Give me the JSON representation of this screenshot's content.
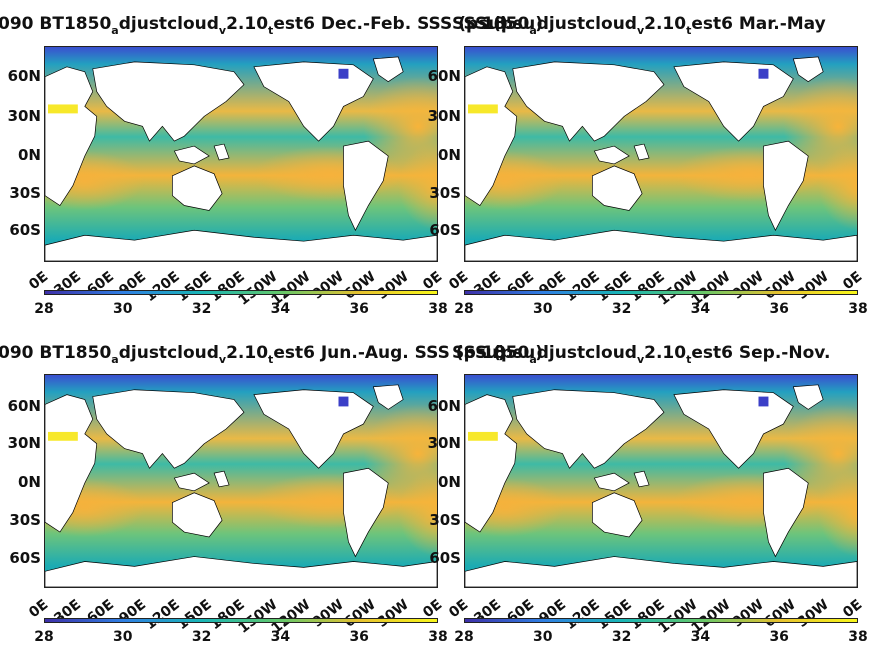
{
  "panels": [
    {
      "title_parts": [
        "090 BT1850",
        "a",
        "djustcloud",
        "v",
        "2.10",
        "t",
        "est6 Dec.-Feb. SSS (psu)"
      ]
    },
    {
      "title_parts": [
        "",
        "",
        "",
        "",
        "",
        "",
        "SSS (psu)"
      ],
      "title_overlay_parts": [
        "1850",
        "a",
        "djustcloud",
        "v",
        "2.10",
        "t",
        "est6 Mar.-May"
      ]
    },
    {
      "title_parts": [
        "090 BT1850",
        "a",
        "djustcloud",
        "v",
        "2.10",
        "t",
        "est6 Jun.-Aug. SSS (psu)"
      ]
    },
    {
      "title_parts": [
        "",
        "",
        "",
        "",
        "",
        "",
        "SSS (psu)"
      ],
      "title_overlay_parts": [
        "1850",
        "a",
        "djustcloud",
        "v",
        "2.10",
        "t",
        "est6 Sep.-Nov."
      ]
    }
  ],
  "latitude_ticks": [
    "60N",
    "30N",
    "0N",
    "30S",
    "60S"
  ],
  "longitude_ticks": [
    "0E",
    "30E",
    "60E",
    "90E",
    "120E",
    "150E",
    "180E",
    "150W",
    "120W",
    "90W",
    "60W",
    "30W",
    "0E"
  ],
  "colorbar": {
    "ticks": [
      "28",
      "30",
      "32",
      "34",
      "36",
      "38"
    ],
    "range": [
      28,
      38
    ],
    "colors": [
      "#3d2fa8",
      "#2f7fe3",
      "#19b6b6",
      "#63c86a",
      "#e6c12f",
      "#f8f71a"
    ]
  },
  "colors": {
    "land": "#ffffff",
    "ocean_low": "#2aa7b0",
    "ocean_mid": "#68c37a",
    "ocean_high": "#f0b43e"
  }
}
